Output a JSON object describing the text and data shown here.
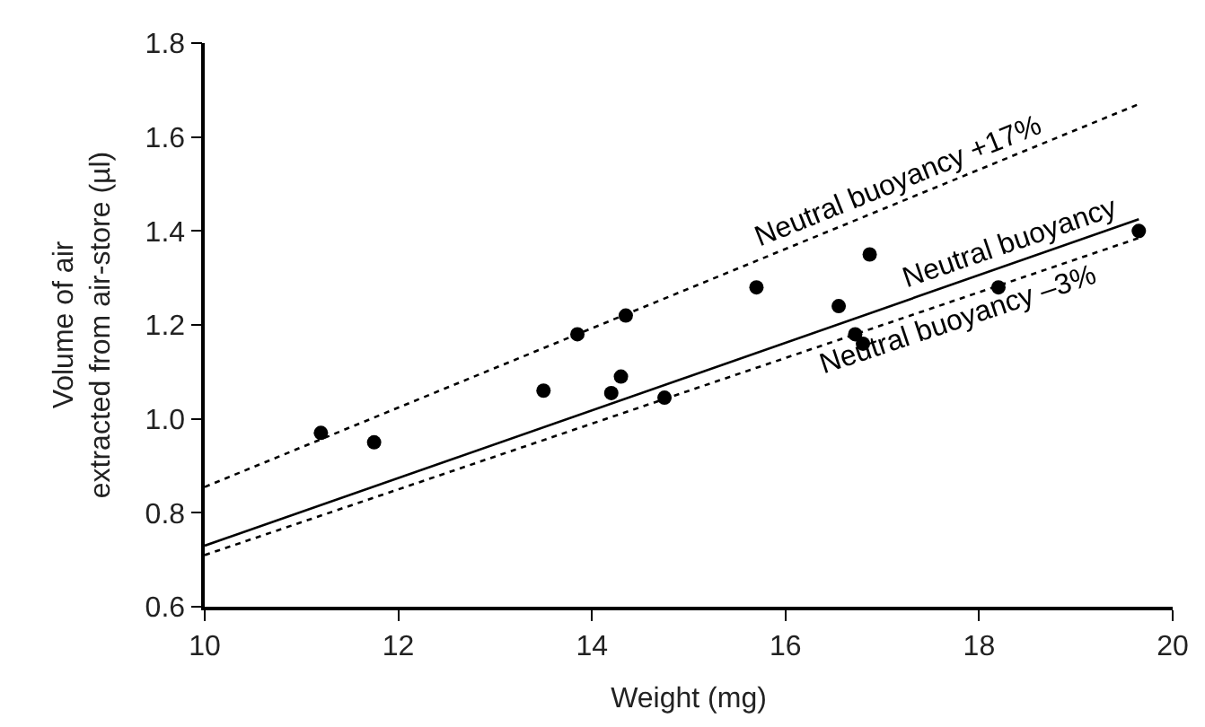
{
  "chart_data": {
    "type": "scatter",
    "xlabel": "Weight (mg)",
    "ylabel": "Volume of air\nextracted from air-store (µl)",
    "xlim": [
      10,
      20
    ],
    "xticks": [
      10,
      12,
      14,
      16,
      18,
      20
    ],
    "ylim": [
      0.6,
      1.8
    ],
    "yticks": [
      {
        "value": 0.6,
        "label": "0.6"
      },
      {
        "value": 0.8,
        "label": "0.8"
      },
      {
        "value": 1.0,
        "label": "1.0"
      },
      {
        "value": 1.2,
        "label": "1.2"
      },
      {
        "value": 1.4,
        "label": "1.4"
      },
      {
        "value": 1.6,
        "label": "1.6"
      },
      {
        "value": 1.8,
        "label": "1.8"
      }
    ],
    "legend": false,
    "series": [
      {
        "color": "#000000",
        "marker": "circle",
        "x": [
          11.2,
          11.75,
          13.5,
          13.85,
          14.2,
          14.3,
          14.35,
          14.75,
          15.7,
          16.55,
          16.72,
          16.8,
          16.87,
          18.2,
          19.65
        ],
        "values": [
          0.97,
          0.95,
          1.06,
          1.18,
          1.055,
          1.09,
          1.22,
          1.045,
          1.28,
          1.24,
          1.18,
          1.16,
          1.35,
          1.28,
          1.4
        ]
      },
      {
        "type": "line",
        "name": "Neutral buoyancy +17%",
        "color": "#000000",
        "line_style": "dotted",
        "x": [
          10,
          19.65
        ],
        "values": [
          0.855,
          1.67
        ]
      },
      {
        "type": "line",
        "name": "Neutral buoyancy",
        "color": "#000000",
        "line_style": "solid",
        "x": [
          10,
          19.65
        ],
        "values": [
          0.73,
          1.425
        ]
      },
      {
        "type": "line",
        "name": "Neutral buoyancy –3%",
        "color": "#000000",
        "line_style": "dotted",
        "x": [
          10,
          19.65
        ],
        "values": [
          0.71,
          1.385
        ]
      }
    ]
  }
}
